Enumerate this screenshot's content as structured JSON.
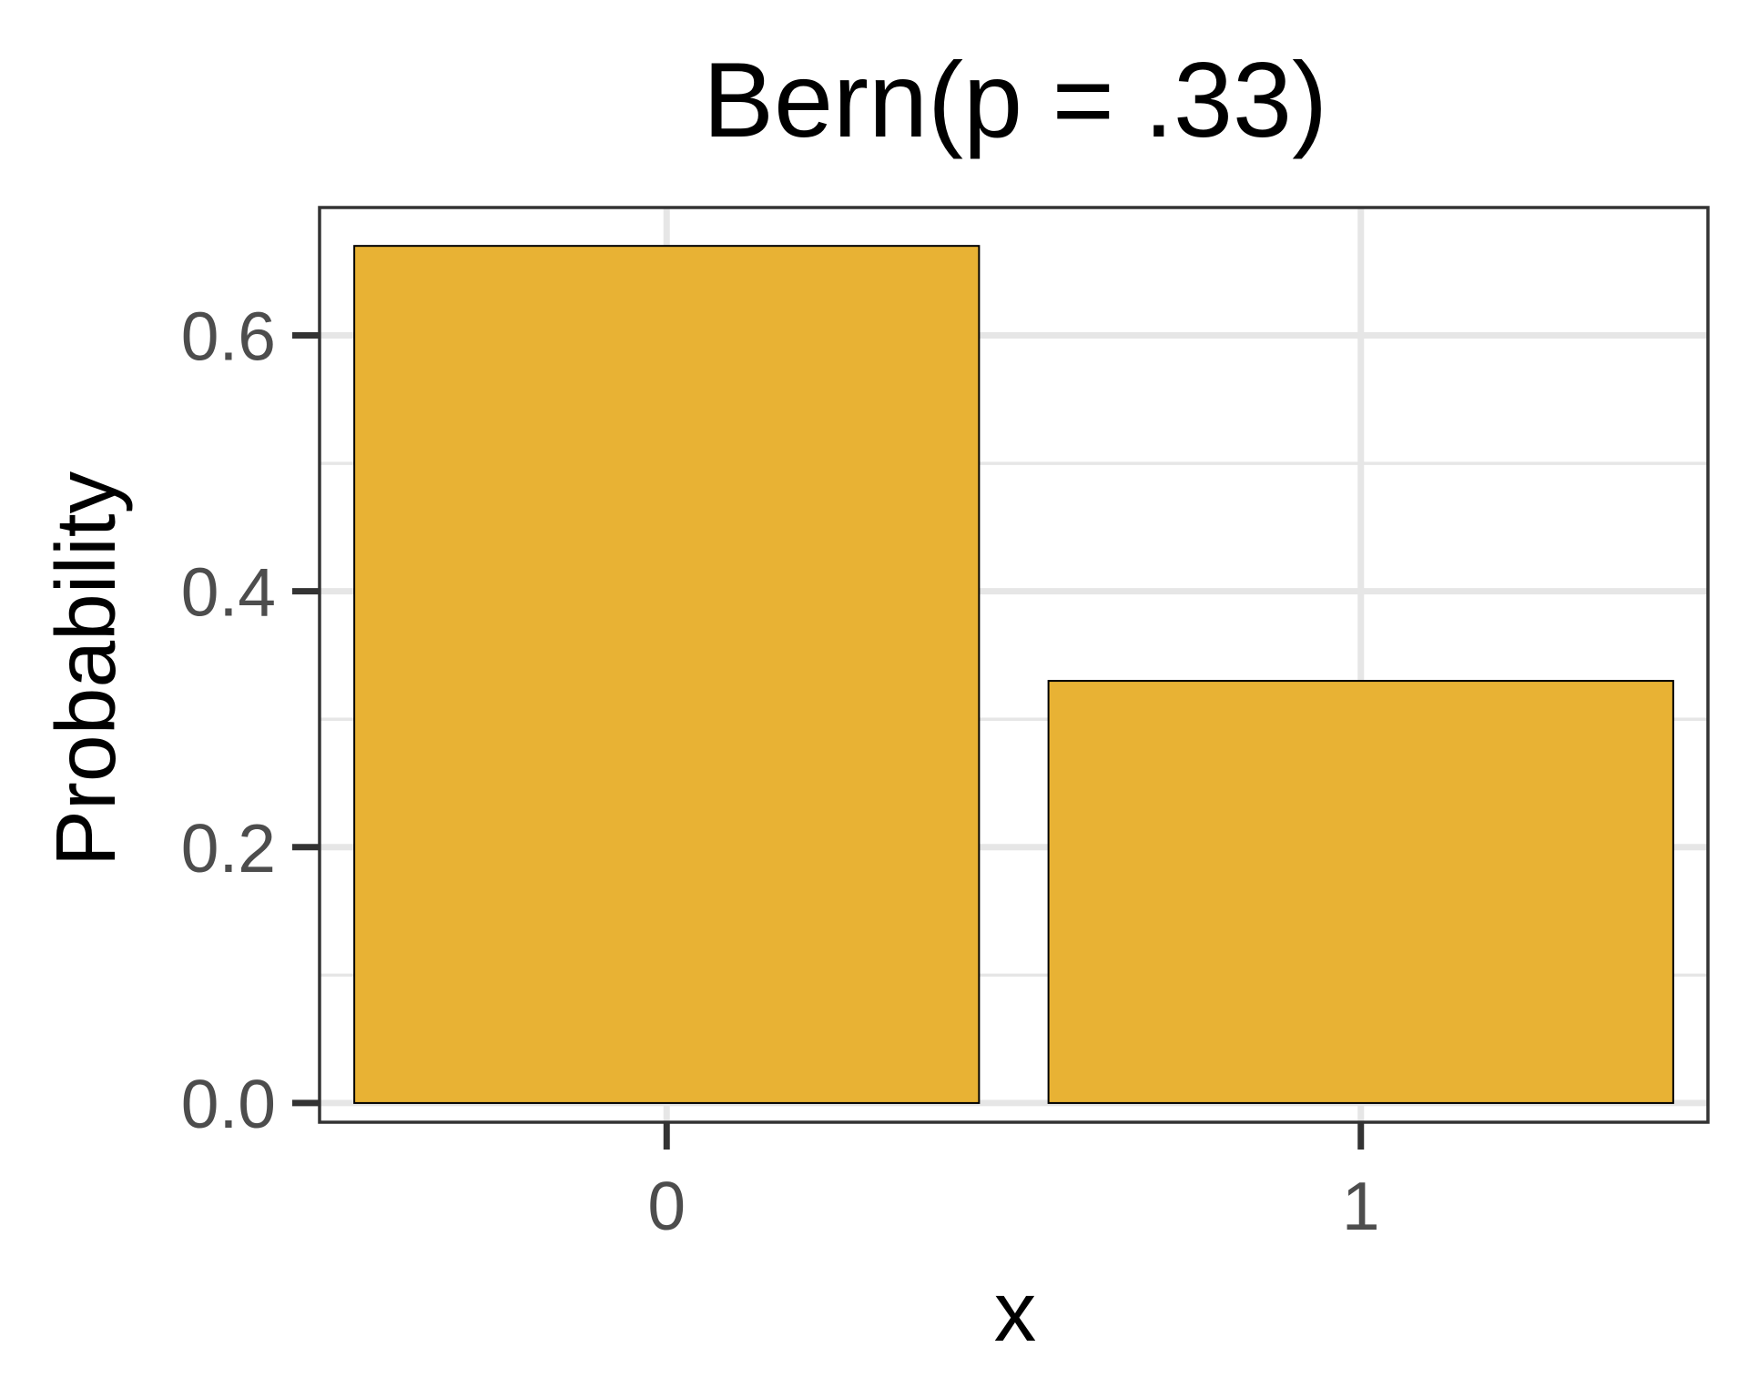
{
  "chart_data": {
    "type": "bar",
    "title": "Bern(p = .33)",
    "xlabel": "x",
    "ylabel": "Probability",
    "categories": [
      "0",
      "1"
    ],
    "values": [
      0.67,
      0.33
    ],
    "ylim": [
      -0.015,
      0.7
    ],
    "yticks": [
      0.0,
      0.2,
      0.4,
      0.6
    ],
    "ytick_labels": [
      "0.0",
      "0.2",
      "0.4",
      "0.6"
    ],
    "grid": true,
    "bar_color": "#E8B234",
    "bar_outline": "#000000"
  }
}
